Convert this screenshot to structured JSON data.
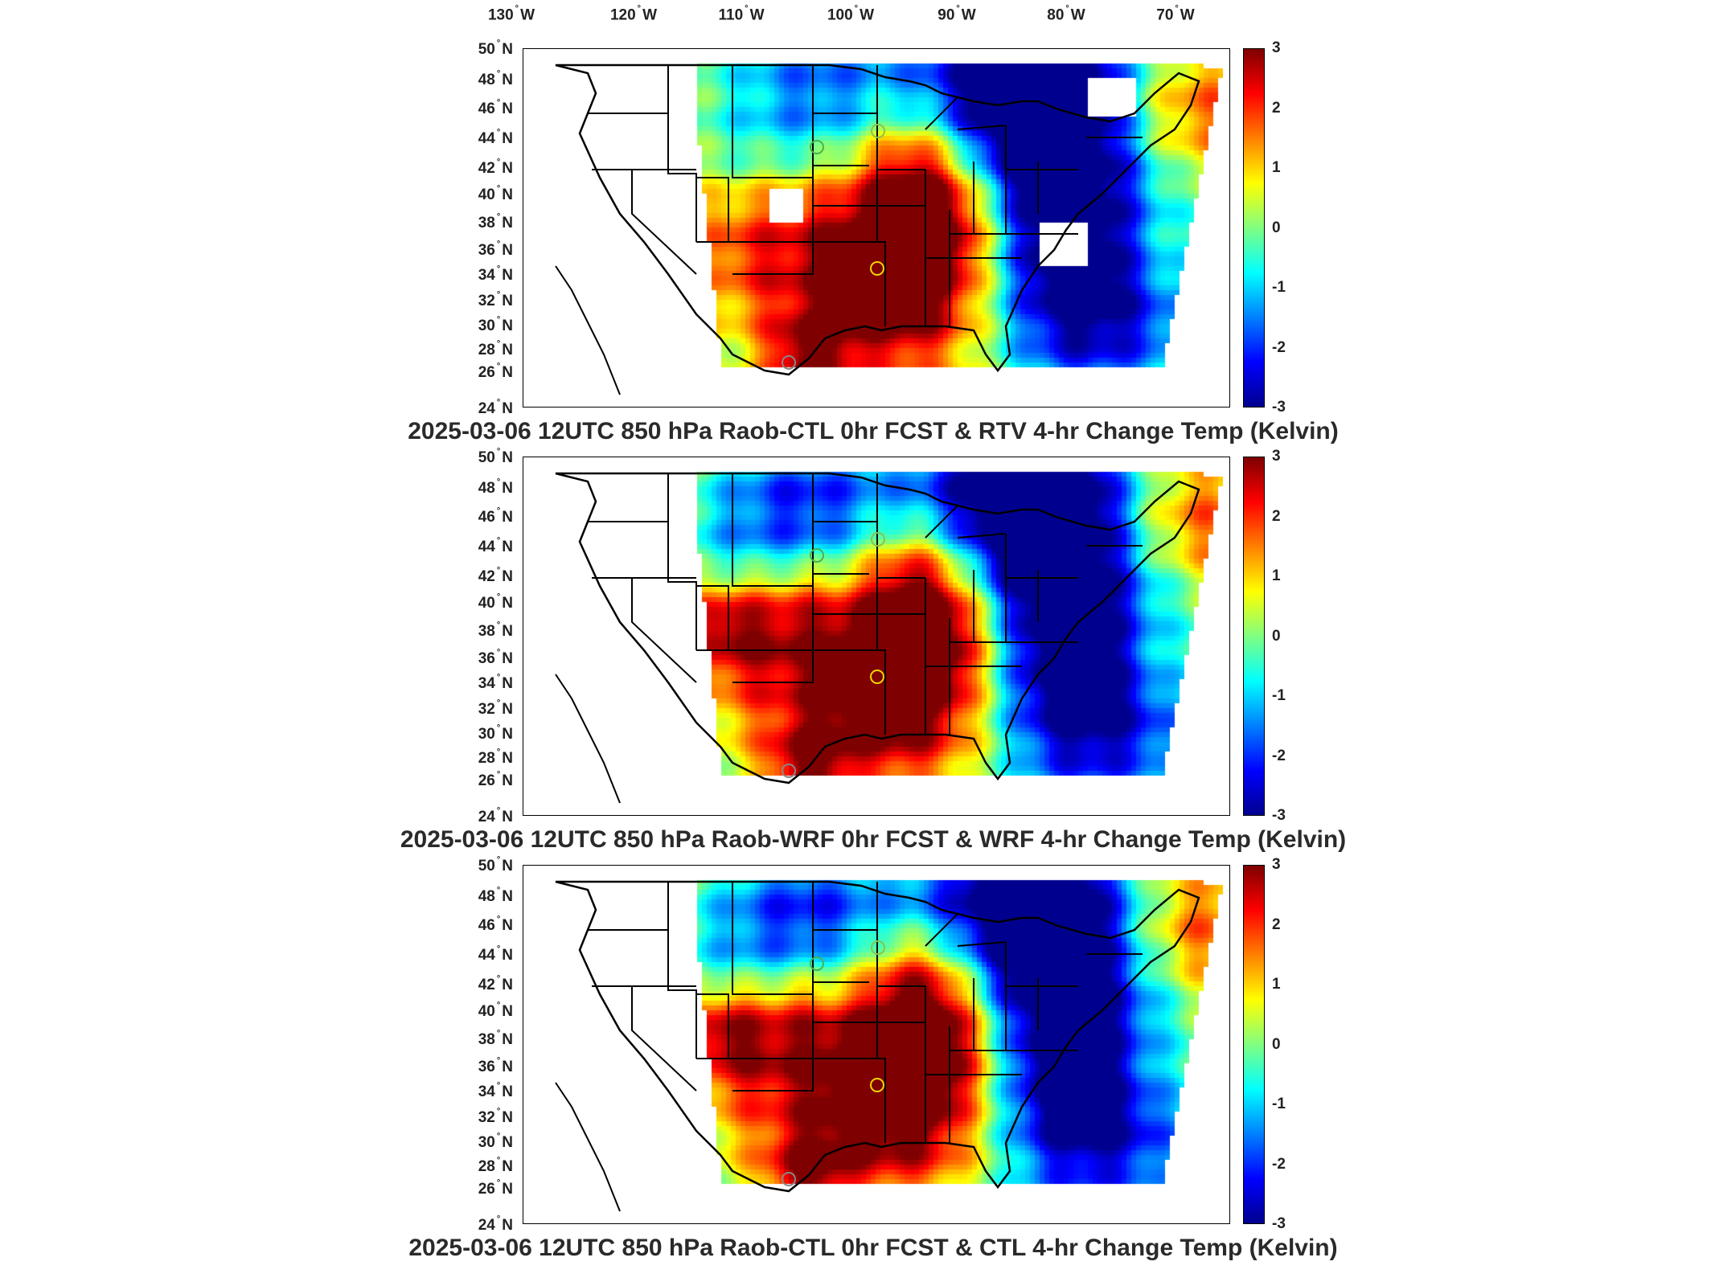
{
  "longitude_labels": [
    {
      "deg": "130",
      "hemi": "W"
    },
    {
      "deg": "120",
      "hemi": "W"
    },
    {
      "deg": "110",
      "hemi": "W"
    },
    {
      "deg": "100",
      "hemi": "W"
    },
    {
      "deg": "90",
      "hemi": "W"
    },
    {
      "deg": "80",
      "hemi": "W"
    },
    {
      "deg": "70",
      "hemi": "W"
    }
  ],
  "latitude_labels": [
    {
      "deg": "50",
      "hemi": "N"
    },
    {
      "deg": "48",
      "hemi": "N"
    },
    {
      "deg": "46",
      "hemi": "N"
    },
    {
      "deg": "44",
      "hemi": "N"
    },
    {
      "deg": "42",
      "hemi": "N"
    },
    {
      "deg": "40",
      "hemi": "N"
    },
    {
      "deg": "38",
      "hemi": "N"
    },
    {
      "deg": "36",
      "hemi": "N"
    },
    {
      "deg": "34",
      "hemi": "N"
    },
    {
      "deg": "32",
      "hemi": "N"
    },
    {
      "deg": "30",
      "hemi": "N"
    },
    {
      "deg": "28",
      "hemi": "N"
    },
    {
      "deg": "26",
      "hemi": "N"
    },
    {
      "deg": "24",
      "hemi": "N"
    }
  ],
  "colorbar": {
    "ticks": [
      "3",
      "2",
      "1",
      "0",
      "-1",
      "-2",
      "-3"
    ],
    "colormap": [
      "#7f0000",
      "#ff0000",
      "#ff8000",
      "#ffff00",
      "#80ff80",
      "#00ffff",
      "#0080ff",
      "#0000ff",
      "#00008f"
    ]
  },
  "panels": [
    {
      "title": "2025-03-06 12UTC 850 hPa Raob-CTL 0hr FCST & RTV 4-hr Change Temp (Kelvin)"
    },
    {
      "title": "2025-03-06 12UTC 850 hPa Raob-WRF 0hr FCST & WRF 4-hr Change Temp (Kelvin)"
    },
    {
      "title": "2025-03-06 12UTC 850 hPa Raob-CTL 0hr FCST & CTL 4-hr Change Temp (Kelvin)"
    }
  ]
}
